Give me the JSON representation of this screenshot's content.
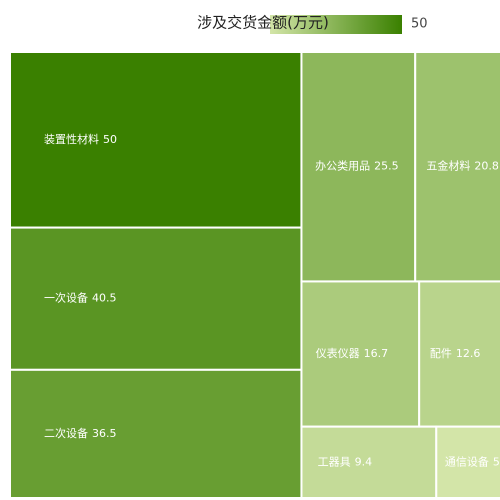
{
  "chart_data": {
    "type": "treemap",
    "title": "涉及交货金额(万元)",
    "categories": [
      "装置性材料",
      "一次设备",
      "二次设备",
      "办公类用品",
      "五金材料",
      "仪表仪器",
      "配件",
      "工器具",
      "通信设备"
    ],
    "values": [
      50,
      40.5,
      36.5,
      25.5,
      20.8,
      16.7,
      12.6,
      9.4,
      5
    ],
    "visual_map": {
      "max": 50,
      "colors": [
        "#d3e5a8",
        "#3a8000"
      ]
    }
  }
}
